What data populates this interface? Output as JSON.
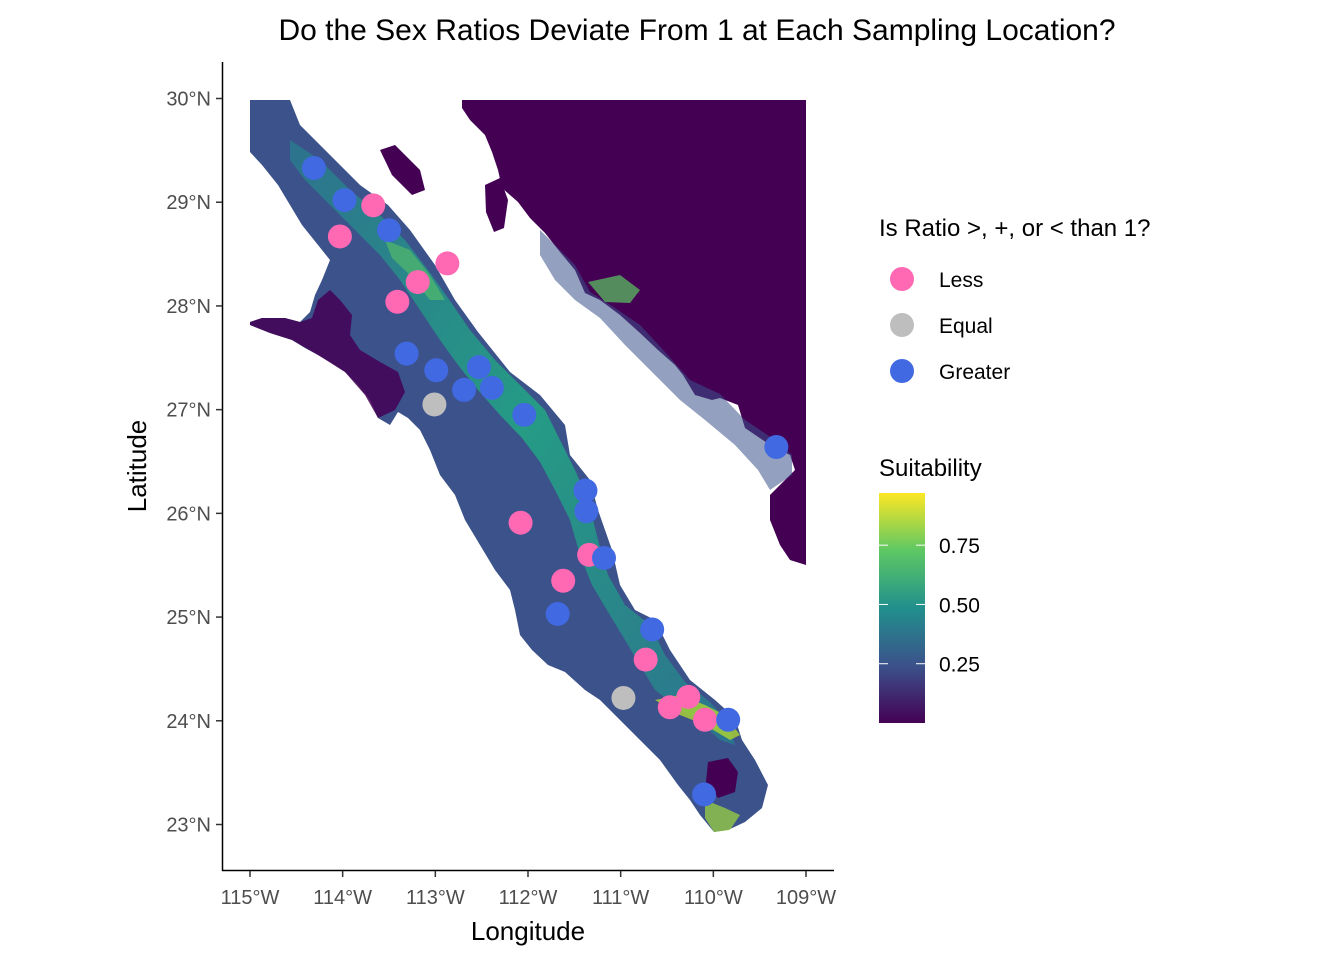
{
  "title": "Do the Sex Ratios Deviate From 1 at Each Sampling Location?",
  "xlabel": "Longitude",
  "ylabel": "Latitude",
  "x_ticks": [
    "115°W",
    "114°W",
    "113°W",
    "112°W",
    "111°W",
    "110°W",
    "109°W"
  ],
  "y_ticks": [
    "30°N",
    "29°N",
    "28°N",
    "27°N",
    "26°N",
    "25°N",
    "24°N",
    "23°N"
  ],
  "legend_points": {
    "title": "Is Ratio >, +, or < than 1?",
    "items": [
      {
        "label": "Less",
        "color": "#FF69B4"
      },
      {
        "label": "Equal",
        "color": "#BEBEBE"
      },
      {
        "label": "Greater",
        "color": "#4169E1"
      }
    ]
  },
  "legend_suitability": {
    "title": "Suitability",
    "ticks": [
      "0.75",
      "0.50",
      "0.25"
    ],
    "tick_values": [
      0.75,
      0.5,
      0.25
    ],
    "range": [
      0.0,
      0.97
    ],
    "palette": [
      "#440154",
      "#3B528B",
      "#21908C",
      "#5DC863",
      "#FDE725"
    ]
  },
  "chart_data": {
    "type": "scatter",
    "xlabel": "Longitude",
    "ylabel": "Latitude",
    "xlim": [
      -115.1,
      -108.7
    ],
    "ylim": [
      22.55,
      30.35
    ],
    "x_ticks": [
      -115,
      -114,
      -113,
      -112,
      -111,
      -110,
      -109
    ],
    "y_ticks": [
      30,
      29,
      28,
      27,
      26,
      25,
      24,
      23
    ],
    "color_scale": "viridis",
    "points": [
      {
        "lon": -114.31,
        "lat": 29.33,
        "ratio": "Greater"
      },
      {
        "lon": -113.98,
        "lat": 29.02,
        "ratio": "Greater"
      },
      {
        "lon": -113.67,
        "lat": 28.97,
        "ratio": "Less"
      },
      {
        "lon": -114.03,
        "lat": 28.67,
        "ratio": "Less"
      },
      {
        "lon": -113.5,
        "lat": 28.73,
        "ratio": "Greater"
      },
      {
        "lon": -112.87,
        "lat": 28.41,
        "ratio": "Less"
      },
      {
        "lon": -113.19,
        "lat": 28.23,
        "ratio": "Less"
      },
      {
        "lon": -113.41,
        "lat": 28.04,
        "ratio": "Less"
      },
      {
        "lon": -113.31,
        "lat": 27.54,
        "ratio": "Greater"
      },
      {
        "lon": -112.99,
        "lat": 27.38,
        "ratio": "Greater"
      },
      {
        "lon": -112.53,
        "lat": 27.41,
        "ratio": "Greater"
      },
      {
        "lon": -112.69,
        "lat": 27.19,
        "ratio": "Greater"
      },
      {
        "lon": -112.39,
        "lat": 27.21,
        "ratio": "Greater"
      },
      {
        "lon": -113.01,
        "lat": 27.05,
        "ratio": "Equal"
      },
      {
        "lon": -112.04,
        "lat": 26.95,
        "ratio": "Greater"
      },
      {
        "lon": -109.32,
        "lat": 26.64,
        "ratio": "Greater"
      },
      {
        "lon": -111.38,
        "lat": 26.22,
        "ratio": "Greater"
      },
      {
        "lon": -111.37,
        "lat": 26.02,
        "ratio": "Greater"
      },
      {
        "lon": -112.08,
        "lat": 25.91,
        "ratio": "Less"
      },
      {
        "lon": -111.34,
        "lat": 25.6,
        "ratio": "Less"
      },
      {
        "lon": -111.18,
        "lat": 25.57,
        "ratio": "Greater"
      },
      {
        "lon": -111.62,
        "lat": 25.35,
        "ratio": "Less"
      },
      {
        "lon": -111.68,
        "lat": 25.03,
        "ratio": "Greater"
      },
      {
        "lon": -110.66,
        "lat": 24.88,
        "ratio": "Greater"
      },
      {
        "lon": -110.73,
        "lat": 24.59,
        "ratio": "Less"
      },
      {
        "lon": -110.97,
        "lat": 24.22,
        "ratio": "Equal"
      },
      {
        "lon": -110.27,
        "lat": 24.23,
        "ratio": "Less"
      },
      {
        "lon": -110.47,
        "lat": 24.13,
        "ratio": "Less"
      },
      {
        "lon": -110.09,
        "lat": 24.01,
        "ratio": "Less"
      },
      {
        "lon": -109.84,
        "lat": 24.01,
        "ratio": "Greater"
      },
      {
        "lon": -110.1,
        "lat": 23.29,
        "ratio": "Greater"
      }
    ]
  }
}
